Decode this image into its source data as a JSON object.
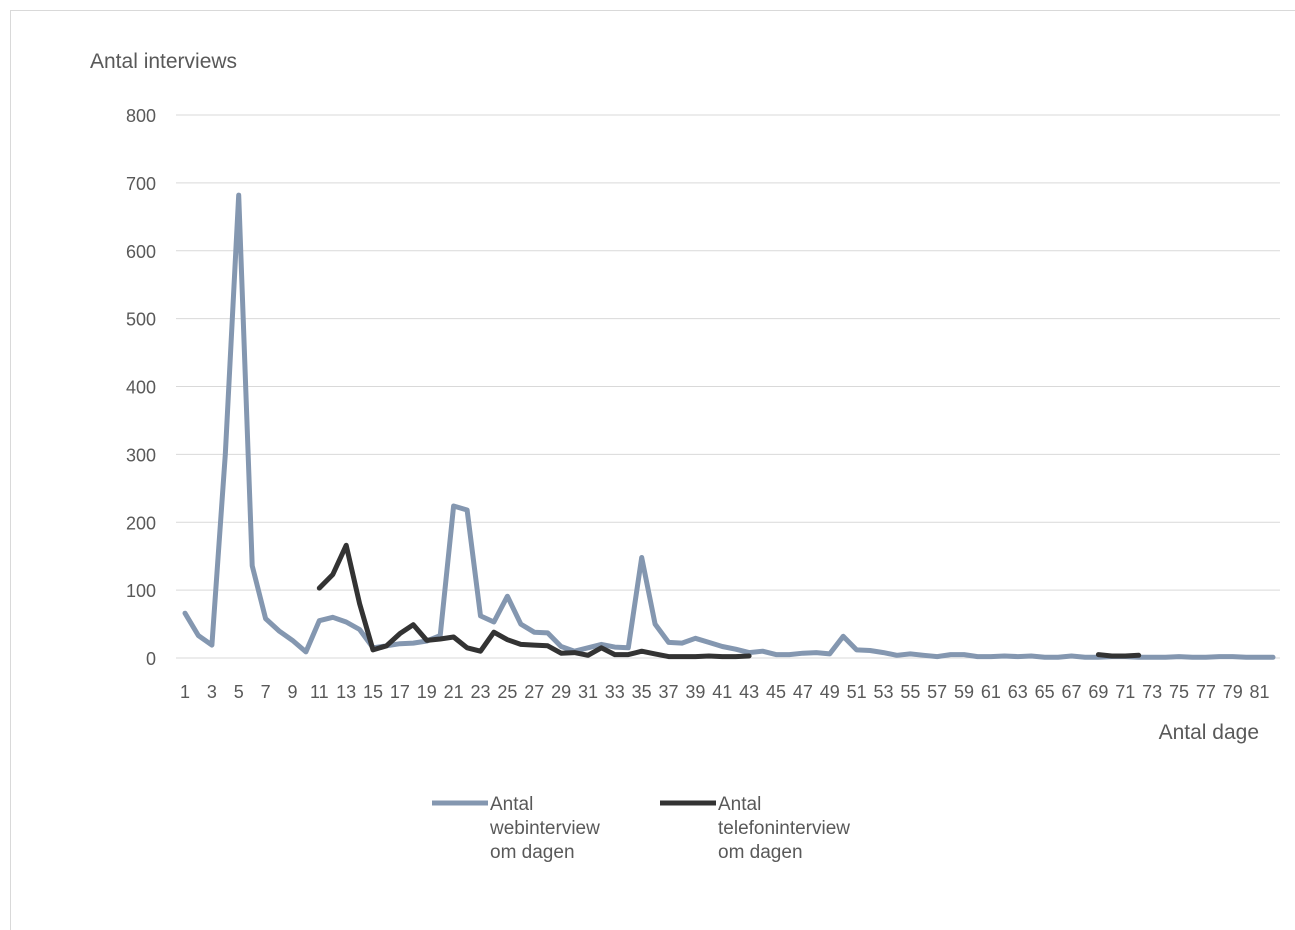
{
  "chart_data": {
    "type": "line",
    "title": "",
    "ylabel": "Antal interviews",
    "xlabel": "Antal dage",
    "ylim": [
      0,
      800
    ],
    "yticks": [
      0,
      100,
      200,
      300,
      400,
      500,
      600,
      700,
      800
    ],
    "grid": true,
    "legend_position": "bottom",
    "x": [
      1,
      2,
      3,
      4,
      5,
      6,
      7,
      8,
      9,
      10,
      11,
      12,
      13,
      14,
      15,
      16,
      17,
      18,
      19,
      20,
      21,
      22,
      23,
      24,
      25,
      26,
      27,
      28,
      29,
      30,
      31,
      32,
      33,
      34,
      35,
      36,
      37,
      38,
      39,
      40,
      41,
      42,
      43,
      44,
      45,
      46,
      47,
      48,
      49,
      50,
      51,
      52,
      53,
      54,
      55,
      56,
      57,
      58,
      59,
      60,
      61,
      62,
      63,
      64,
      65,
      66,
      67,
      68,
      69,
      70,
      71,
      72,
      73,
      74,
      75,
      76,
      77,
      78,
      79,
      80,
      81,
      82
    ],
    "xtick_labels": [
      "1",
      "3",
      "5",
      "7",
      "9",
      "11",
      "13",
      "15",
      "17",
      "19",
      "21",
      "23",
      "25",
      "27",
      "29",
      "31",
      "33",
      "35",
      "37",
      "39",
      "41",
      "43",
      "45",
      "47",
      "49",
      "51",
      "53",
      "55",
      "57",
      "59",
      "61",
      "63",
      "65",
      "67",
      "69",
      "71",
      "73",
      "75",
      "77",
      "79",
      "81"
    ],
    "series": [
      {
        "name": "Antal webinterview om dagen",
        "name_lines": [
          "Antal",
          "webinterview",
          "om dagen"
        ],
        "color": "#8497b0",
        "values": [
          66,
          33,
          19,
          300,
          682,
          136,
          58,
          40,
          26,
          9,
          55,
          60,
          53,
          42,
          15,
          18,
          21,
          22,
          25,
          33,
          224,
          218,
          62,
          53,
          91,
          50,
          38,
          37,
          17,
          10,
          15,
          20,
          16,
          15,
          148,
          50,
          23,
          22,
          29,
          23,
          17,
          13,
          8,
          10,
          5,
          5,
          7,
          8,
          6,
          32,
          12,
          11,
          8,
          4,
          6,
          4,
          2,
          5,
          5,
          2,
          2,
          3,
          2,
          3,
          1,
          1,
          3,
          1,
          1,
          2,
          2,
          1,
          1,
          1,
          2,
          1,
          1,
          2,
          2,
          1,
          1,
          1
        ]
      },
      {
        "name": "Antal telefoninterview om dagen",
        "name_lines": [
          "Antal",
          "telefoninterview",
          "om dagen"
        ],
        "color": "#333333",
        "values": [
          null,
          null,
          null,
          null,
          null,
          null,
          null,
          null,
          null,
          null,
          103,
          123,
          166,
          80,
          12,
          18,
          36,
          49,
          26,
          28,
          31,
          15,
          10,
          38,
          27,
          20,
          19,
          18,
          7,
          8,
          4,
          15,
          5,
          5,
          10,
          6,
          2,
          2,
          2,
          3,
          2,
          2,
          3,
          null,
          null,
          null,
          null,
          null,
          null,
          null,
          null,
          null,
          null,
          null,
          null,
          null,
          null,
          null,
          null,
          null,
          null,
          null,
          null,
          null,
          null,
          null,
          null,
          null,
          5,
          3,
          3,
          4,
          null,
          null,
          null,
          null,
          null,
          null,
          null,
          null,
          null,
          null
        ]
      }
    ]
  }
}
